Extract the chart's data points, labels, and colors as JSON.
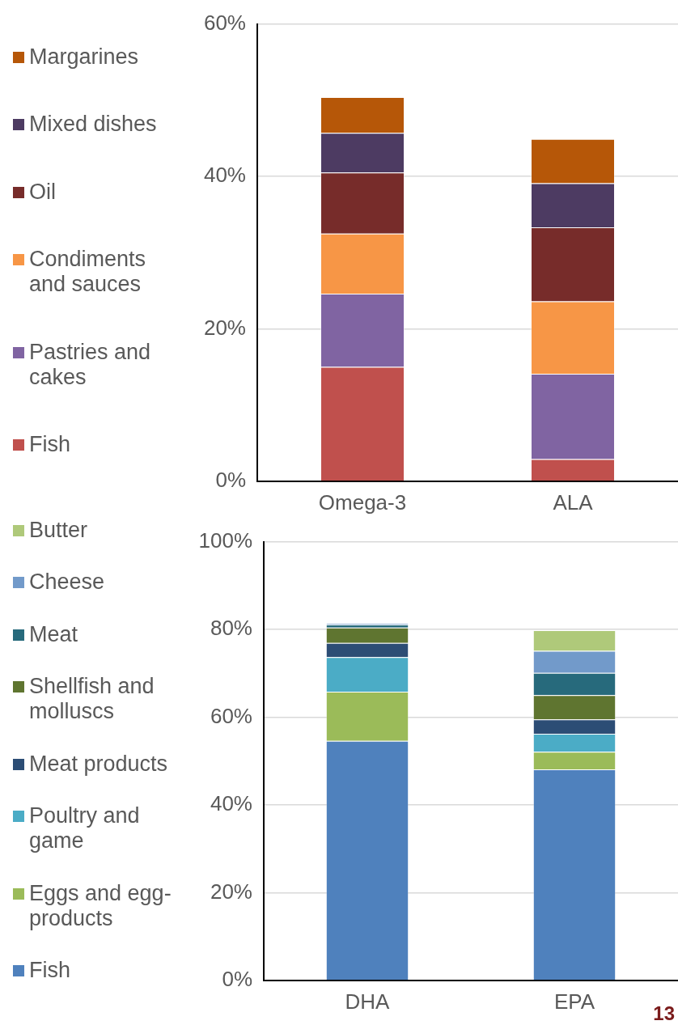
{
  "chart_data": [
    {
      "type": "bar",
      "stacked": true,
      "categories": [
        "Omega-3",
        "ALA"
      ],
      "ylim": [
        0,
        60
      ],
      "yticks": [
        {
          "value": 0,
          "label": "0%"
        },
        {
          "value": 20,
          "label": "20%"
        },
        {
          "value": 40,
          "label": "40%"
        },
        {
          "value": 60,
          "label": "60%"
        }
      ],
      "grid": "y",
      "legend": "left",
      "series": [
        {
          "name": "Fish",
          "color": "#c0504d",
          "values": [
            15.0,
            2.9
          ]
        },
        {
          "name": "Pastries and cakes",
          "color": "#8064a2",
          "values": [
            9.6,
            11.2
          ]
        },
        {
          "name": "Condiments and sauces",
          "color": "#f79646",
          "values": [
            7.9,
            9.5
          ]
        },
        {
          "name": "Oil",
          "color": "#772c2a",
          "values": [
            8.0,
            9.7
          ]
        },
        {
          "name": "Mixed dishes",
          "color": "#4d3b62",
          "values": [
            5.2,
            5.8
          ]
        },
        {
          "name": "Margarines",
          "color": "#b65708",
          "values": [
            4.7,
            5.8
          ]
        }
      ]
    },
    {
      "type": "bar",
      "stacked": true,
      "categories": [
        "DHA",
        "EPA"
      ],
      "ylim": [
        0,
        100
      ],
      "yticks": [
        {
          "value": 0,
          "label": "0%"
        },
        {
          "value": 20,
          "label": "20%"
        },
        {
          "value": 40,
          "label": "40%"
        },
        {
          "value": 60,
          "label": "60%"
        },
        {
          "value": 80,
          "label": "80%"
        },
        {
          "value": 100,
          "label": "100%"
        }
      ],
      "grid": "y",
      "legend": "left",
      "annotations": [
        "13"
      ],
      "series": [
        {
          "name": "Fish",
          "color": "#4f81bd",
          "values": [
            54.6,
            48.1
          ]
        },
        {
          "name": "Eggs and egg-products",
          "color": "#9bbb59",
          "values": [
            11.2,
            4.0
          ]
        },
        {
          "name": "Poultry and game",
          "color": "#4bacc6",
          "values": [
            7.9,
            4.1
          ]
        },
        {
          "name": "Meat products",
          "color": "#2c4d75",
          "values": [
            3.2,
            3.3
          ]
        },
        {
          "name": "Shellfish and molluscs",
          "color": "#5f7530",
          "values": [
            3.5,
            5.5
          ]
        },
        {
          "name": "Meat",
          "color": "#276a7c",
          "values": [
            0.7,
            5.1
          ]
        },
        {
          "name": "Cheese",
          "color": "#729aca",
          "values": [
            0.3,
            5.0
          ]
        },
        {
          "name": "Butter",
          "color": "#afc97a",
          "values": [
            0,
            4.7
          ]
        }
      ]
    }
  ]
}
